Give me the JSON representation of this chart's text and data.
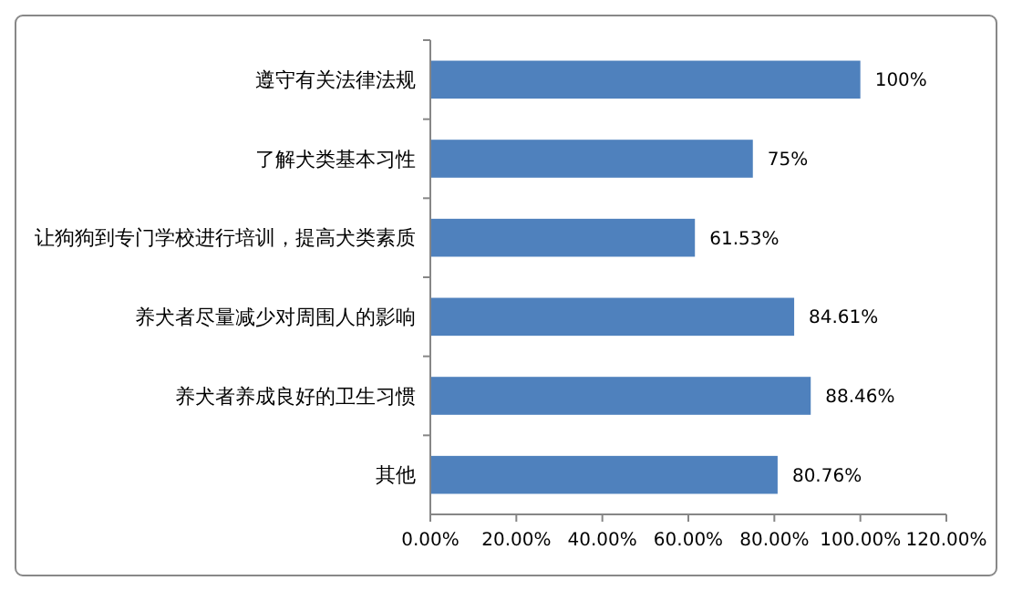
{
  "chart_data": {
    "type": "bar",
    "orientation": "horizontal",
    "categories": [
      "遵守有关法律法规",
      "了解犬类基本习性",
      "让狗狗到专门学校进行培训，提高犬类素质",
      "养犬者尽量减少对周围人的影响",
      "养犬者养成良好的卫生习惯",
      "其他"
    ],
    "values": [
      100,
      75,
      61.53,
      84.61,
      88.46,
      80.76
    ],
    "value_labels": [
      "100%",
      "75%",
      "61.53%",
      "84.61%",
      "88.46%",
      "80.76%"
    ],
    "color": "#4f81bd",
    "xlim": [
      0,
      120
    ],
    "xticks": [
      {
        "value": 0,
        "label": "0.00%"
      },
      {
        "value": 20,
        "label": "20.00%"
      },
      {
        "value": 40,
        "label": "40.00%"
      },
      {
        "value": 60,
        "label": "60.00%"
      },
      {
        "value": 80,
        "label": "80.00%"
      },
      {
        "value": 100,
        "label": "100.00%"
      },
      {
        "value": 120,
        "label": "120.00%"
      }
    ],
    "grid": false
  }
}
